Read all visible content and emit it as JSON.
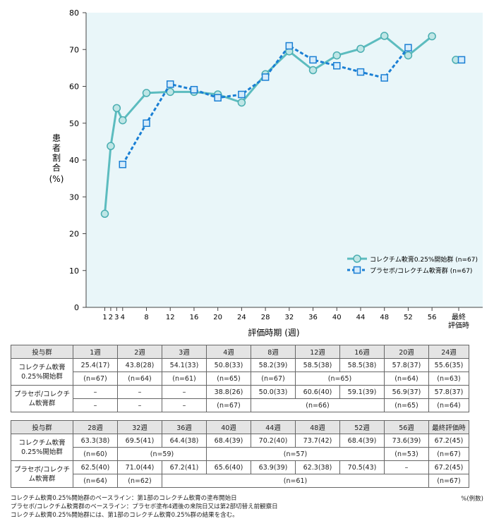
{
  "chart_data": {
    "type": "line",
    "ylabel": "患者割合(%)",
    "xlabel": "評価時期 (週)",
    "ylim": [
      0,
      80
    ],
    "yticks": [
      0,
      10,
      20,
      30,
      40,
      50,
      60,
      70,
      80
    ],
    "xticks": [
      "1",
      "2",
      "3",
      "4",
      "8",
      "12",
      "16",
      "20",
      "24",
      "28",
      "32",
      "36",
      "40",
      "44",
      "48",
      "52",
      "56",
      "最終評価時"
    ],
    "grid": false,
    "legend_position": "right",
    "series": [
      {
        "name": "コレクチム軟膏0.25%開始群 (n=67)",
        "color": "#5cbcbf",
        "marker": "circle",
        "x": [
          1,
          2,
          3,
          4,
          8,
          12,
          16,
          20,
          24,
          28,
          32,
          36,
          40,
          44,
          48,
          52,
          56
        ],
        "values": [
          25.4,
          43.8,
          54.1,
          50.8,
          58.2,
          58.5,
          58.5,
          57.8,
          55.6,
          63.3,
          69.5,
          64.4,
          68.4,
          70.2,
          73.7,
          68.4,
          73.6
        ],
        "final": 67.2
      },
      {
        "name": "プラセボ/コレクチム軟膏群 (n=67)",
        "color": "#1a7fd4",
        "marker": "square",
        "x": [
          4,
          8,
          12,
          16,
          20,
          24,
          28,
          32,
          36,
          40,
          44,
          48,
          52
        ],
        "values": [
          38.8,
          50.0,
          60.6,
          59.1,
          56.9,
          57.8,
          62.5,
          71.0,
          67.2,
          65.6,
          63.9,
          62.3,
          70.5
        ],
        "final": 67.2
      }
    ]
  },
  "table1": {
    "head": [
      "投与群",
      "1週",
      "2週",
      "3週",
      "4週",
      "8週",
      "12週",
      "16週",
      "20週",
      "24週"
    ],
    "g1_name": "コレクチム軟膏0.25%開始群",
    "g1_vals": [
      "25.4(17)",
      "43.8(28)",
      "54.1(33)",
      "50.8(33)",
      "58.2(39)",
      "58.5(38)",
      "58.5(38)",
      "57.8(37)",
      "55.6(35)"
    ],
    "g1_n": [
      "(n=67)",
      "(n=64)",
      "(n=61)",
      "(n=65)",
      "(n=67)",
      "(n=65)",
      "(n=64)",
      "(n=63)"
    ],
    "g2_name": "プラセボ/コレクチム軟膏群",
    "g2_vals": [
      "–",
      "–",
      "–",
      "38.8(26)",
      "50.0(33)",
      "60.6(40)",
      "59.1(39)",
      "56.9(37)",
      "57.8(37)"
    ],
    "g2_n": [
      "–",
      "–",
      "–",
      "(n=67)",
      "(n=66)",
      "(n=65)",
      "(n=64)"
    ]
  },
  "table2": {
    "head": [
      "投与群",
      "28週",
      "32週",
      "36週",
      "40週",
      "44週",
      "48週",
      "52週",
      "56週",
      "最終評価時"
    ],
    "g1_name": "コレクチム軟膏0.25%開始群",
    "g1_vals": [
      "63.3(38)",
      "69.5(41)",
      "64.4(38)",
      "68.4(39)",
      "70.2(40)",
      "73.7(42)",
      "68.4(39)",
      "73.6(39)",
      "67.2(45)"
    ],
    "g1_n": [
      "(n=60)",
      "(n=59)",
      "(n=57)",
      "(n=53)",
      "(n=67)"
    ],
    "g2_name": "プラセボ/コレクチム軟膏群",
    "g2_vals": [
      "62.5(40)",
      "71.0(44)",
      "67.2(41)",
      "65.6(40)",
      "63.9(39)",
      "62.3(38)",
      "70.5(43)",
      "–",
      "67.2(45)"
    ],
    "g2_n": [
      "(n=64)",
      "(n=62)",
      "(n=61)",
      "(n=67)"
    ]
  },
  "notes": [
    "コレクチム軟膏0.25%開始群のベースライン：第1部のコレクチム軟膏の塗布開始日",
    "プラセボ/コレクチム軟膏群のベースライン：プラセボ塗布4週後の来院日又は第2部切替え前観察日",
    "コレクチム軟膏0.25%開始群には、第1部のコレクチム軟膏0.25%群の結果を含む。"
  ],
  "unit_note": "%(例数)"
}
